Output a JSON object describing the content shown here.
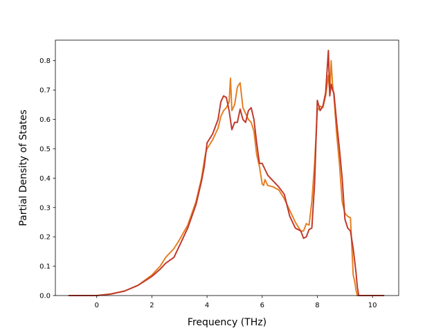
{
  "chart_data": {
    "type": "line",
    "xlabel": "Frequency (THz)",
    "ylabel": "Partial Density of States",
    "xlim": [
      -1.5,
      10.95
    ],
    "ylim": [
      0.0,
      0.87
    ],
    "x_ticks": [
      0,
      2,
      4,
      6,
      8,
      10
    ],
    "x_tick_labels": [
      "0",
      "2",
      "4",
      "6",
      "8",
      "10"
    ],
    "y_ticks": [
      0.0,
      0.1,
      0.2,
      0.3,
      0.4,
      0.5,
      0.6,
      0.7,
      0.8
    ],
    "y_tick_labels": [
      "0.0",
      "0.1",
      "0.2",
      "0.3",
      "0.4",
      "0.5",
      "0.6",
      "0.7",
      "0.8"
    ],
    "grid": false,
    "legend": false,
    "series": [
      {
        "color": "#e67e22",
        "x": [
          -1.0,
          0.0,
          0.5,
          1.0,
          1.5,
          2.0,
          2.3,
          2.5,
          2.8,
          3.0,
          3.3,
          3.6,
          3.8,
          3.9,
          3.95,
          4.0,
          4.2,
          4.4,
          4.5,
          4.6,
          4.7,
          4.8,
          4.85,
          4.9,
          5.0,
          5.1,
          5.2,
          5.3,
          5.4,
          5.5,
          5.6,
          5.7,
          5.8,
          5.9,
          6.0,
          6.05,
          6.1,
          6.2,
          6.4,
          6.6,
          6.8,
          7.0,
          7.2,
          7.4,
          7.5,
          7.6,
          7.7,
          7.8,
          7.9,
          8.0,
          8.1,
          8.2,
          8.3,
          8.4,
          8.45,
          8.5,
          8.55,
          8.6,
          8.7,
          8.8,
          8.9,
          9.0,
          9.1,
          9.2,
          9.3,
          9.35,
          9.4,
          9.45,
          9.5,
          10.4
        ],
        "y": [
          0.0,
          0.0,
          0.005,
          0.015,
          0.035,
          0.07,
          0.1,
          0.13,
          0.16,
          0.19,
          0.24,
          0.32,
          0.4,
          0.46,
          0.485,
          0.5,
          0.53,
          0.57,
          0.61,
          0.63,
          0.64,
          0.66,
          0.74,
          0.63,
          0.65,
          0.71,
          0.725,
          0.64,
          0.62,
          0.6,
          0.59,
          0.56,
          0.48,
          0.44,
          0.38,
          0.375,
          0.395,
          0.375,
          0.37,
          0.36,
          0.33,
          0.29,
          0.25,
          0.22,
          0.22,
          0.245,
          0.24,
          0.32,
          0.45,
          0.63,
          0.645,
          0.64,
          0.68,
          0.75,
          0.69,
          0.8,
          0.72,
          0.68,
          0.55,
          0.45,
          0.32,
          0.28,
          0.27,
          0.265,
          0.07,
          0.05,
          0.02,
          0.0,
          0.0,
          0.0
        ]
      },
      {
        "color": "#c0392b",
        "x": [
          -1.0,
          0.0,
          0.5,
          1.0,
          1.5,
          2.0,
          2.3,
          2.5,
          2.8,
          3.0,
          3.3,
          3.6,
          3.8,
          3.9,
          3.95,
          4.0,
          4.2,
          4.4,
          4.5,
          4.6,
          4.7,
          4.8,
          4.9,
          5.0,
          5.1,
          5.2,
          5.3,
          5.4,
          5.5,
          5.6,
          5.7,
          5.8,
          5.9,
          6.0,
          6.1,
          6.2,
          6.4,
          6.6,
          6.8,
          7.0,
          7.2,
          7.4,
          7.5,
          7.6,
          7.7,
          7.8,
          7.9,
          8.0,
          8.1,
          8.2,
          8.3,
          8.4,
          8.45,
          8.5,
          8.55,
          8.6,
          8.7,
          8.8,
          8.9,
          9.0,
          9.1,
          9.2,
          9.3,
          9.4,
          9.45,
          9.5,
          10.4
        ],
        "y": [
          0.0,
          0.0,
          0.005,
          0.015,
          0.035,
          0.065,
          0.09,
          0.11,
          0.13,
          0.17,
          0.23,
          0.31,
          0.39,
          0.44,
          0.48,
          0.52,
          0.55,
          0.6,
          0.66,
          0.68,
          0.675,
          0.63,
          0.565,
          0.59,
          0.59,
          0.635,
          0.6,
          0.59,
          0.63,
          0.64,
          0.6,
          0.52,
          0.45,
          0.45,
          0.43,
          0.41,
          0.39,
          0.37,
          0.345,
          0.27,
          0.23,
          0.22,
          0.195,
          0.2,
          0.225,
          0.23,
          0.38,
          0.665,
          0.63,
          0.645,
          0.69,
          0.835,
          0.68,
          0.72,
          0.7,
          0.69,
          0.59,
          0.5,
          0.4,
          0.26,
          0.23,
          0.22,
          0.16,
          0.08,
          0.03,
          0.0,
          0.0
        ]
      }
    ]
  }
}
